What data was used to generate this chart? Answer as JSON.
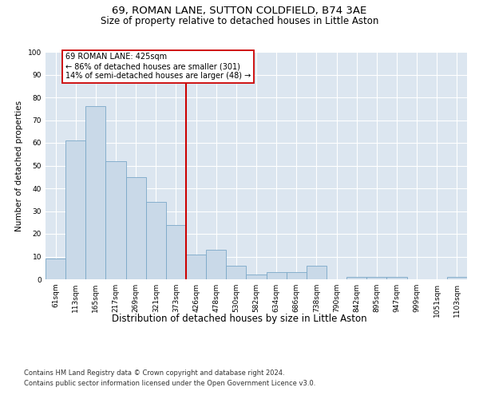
{
  "title": "69, ROMAN LANE, SUTTON COLDFIELD, B74 3AE",
  "subtitle": "Size of property relative to detached houses in Little Aston",
  "xlabel": "Distribution of detached houses by size in Little Aston",
  "ylabel": "Number of detached properties",
  "bar_labels": [
    "61sqm",
    "113sqm",
    "165sqm",
    "217sqm",
    "269sqm",
    "321sqm",
    "373sqm",
    "426sqm",
    "478sqm",
    "530sqm",
    "582sqm",
    "634sqm",
    "686sqm",
    "738sqm",
    "790sqm",
    "842sqm",
    "895sqm",
    "947sqm",
    "999sqm",
    "1051sqm",
    "1103sqm"
  ],
  "bar_values": [
    9,
    61,
    76,
    52,
    45,
    34,
    24,
    11,
    13,
    6,
    2,
    3,
    3,
    6,
    0,
    1,
    1,
    1,
    0,
    0,
    1
  ],
  "bar_color": "#c9d9e8",
  "bar_edge_color": "#7aa8c8",
  "vline_color": "#cc0000",
  "annotation_text": "69 ROMAN LANE: 425sqm\n← 86% of detached houses are smaller (301)\n14% of semi-detached houses are larger (48) →",
  "annotation_box_color": "#ffffff",
  "annotation_box_edge_color": "#cc0000",
  "ylim": [
    0,
    100
  ],
  "yticks": [
    0,
    10,
    20,
    30,
    40,
    50,
    60,
    70,
    80,
    90,
    100
  ],
  "plot_bg_color": "#dce6f0",
  "footer_line1": "Contains HM Land Registry data © Crown copyright and database right 2024.",
  "footer_line2": "Contains public sector information licensed under the Open Government Licence v3.0.",
  "title_fontsize": 9.5,
  "subtitle_fontsize": 8.5,
  "xlabel_fontsize": 8.5,
  "ylabel_fontsize": 7.5,
  "tick_fontsize": 6.5,
  "annotation_fontsize": 7.0,
  "footer_fontsize": 6.0
}
